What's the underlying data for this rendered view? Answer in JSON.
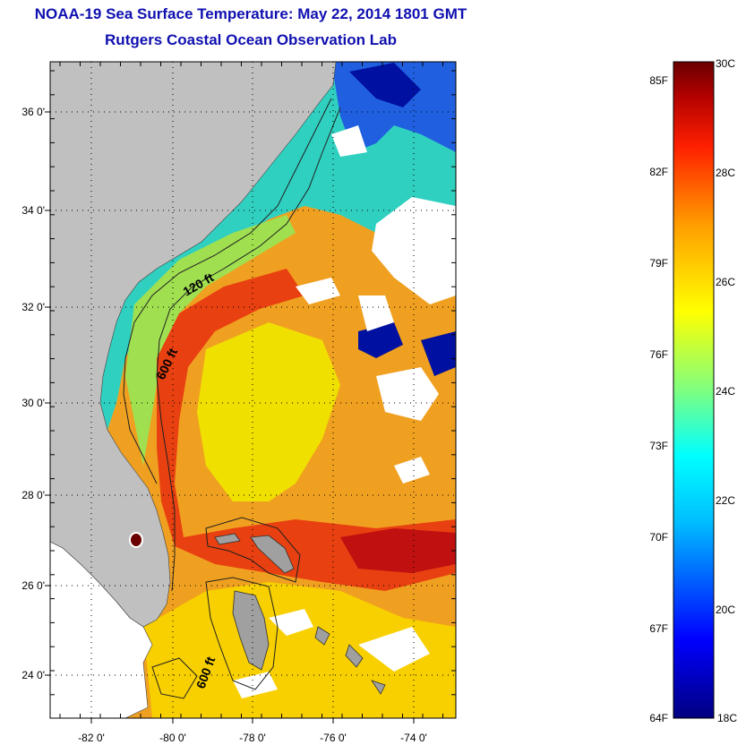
{
  "header": {
    "title": "NOAA-19 Sea Surface Temperature:  May 22, 2014 1801 GMT",
    "subtitle": "Rutgers Coastal Ocean Observation Lab"
  },
  "map": {
    "lon_ticks": [
      "-82 0'",
      "-80 0'",
      "-78 0'",
      "-76 0'",
      "-74 0'"
    ],
    "lat_ticks": [
      "36 0'",
      "34 0'",
      "32 0'",
      "30 0'",
      "28 0'",
      "26 0'",
      "24 0'"
    ],
    "lon_range": [
      -83.0,
      -73.0
    ],
    "lat_range": [
      23.0,
      37.1
    ],
    "land_color": "#c0c0c0",
    "cloud_color": "#ffffff",
    "isobaths": [
      {
        "label": "120 ft"
      },
      {
        "label": "600 ft"
      },
      {
        "label": "600 ft"
      }
    ]
  },
  "colorbar": {
    "celsius_labels": [
      "30C",
      "28C",
      "26C",
      "24C",
      "22C",
      "20C",
      "18C"
    ],
    "fahrenheit_labels": [
      "85F",
      "82F",
      "79F",
      "76F",
      "73F",
      "70F",
      "67F",
      "64F"
    ],
    "range_c": [
      18,
      30
    ],
    "colors": [
      "#000080",
      "#0000ff",
      "#00bfff",
      "#00ffff",
      "#7fff7f",
      "#ffff00",
      "#ff9f00",
      "#ff2000",
      "#b00000",
      "#6a0000"
    ]
  }
}
